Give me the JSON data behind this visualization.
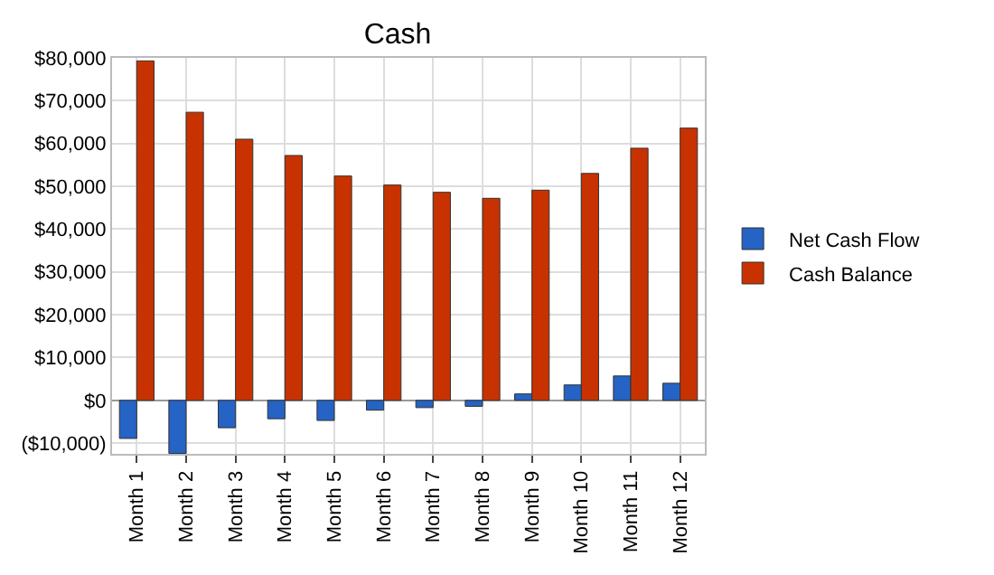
{
  "chart_data": {
    "type": "bar",
    "title": "Cash",
    "categories": [
      "Month 1",
      "Month 2",
      "Month 3",
      "Month 4",
      "Month 5",
      "Month 6",
      "Month 7",
      "Month 8",
      "Month 9",
      "Month 10",
      "Month 11",
      "Month 12"
    ],
    "series": [
      {
        "name": "Net Cash Flow",
        "color": "#2563c4",
        "values": [
          -8900,
          -12400,
          -6400,
          -4300,
          -4700,
          -2300,
          -1700,
          -1400,
          1500,
          3600,
          5700,
          4000
        ]
      },
      {
        "name": "Cash Balance",
        "color": "#c83200",
        "values": [
          79300,
          67300,
          61000,
          57200,
          52400,
          50300,
          48600,
          47200,
          49100,
          53000,
          58900,
          63600
        ]
      }
    ],
    "ylim": [
      -12500,
      80000
    ],
    "yticks": [
      {
        "value": -10000,
        "label": "($10,000)"
      },
      {
        "value": 0,
        "label": "$0"
      },
      {
        "value": 10000,
        "label": "$10,000"
      },
      {
        "value": 20000,
        "label": "$20,000"
      },
      {
        "value": 30000,
        "label": "$30,000"
      },
      {
        "value": 40000,
        "label": "$40,000"
      },
      {
        "value": 50000,
        "label": "$50,000"
      },
      {
        "value": 60000,
        "label": "$60,000"
      },
      {
        "value": 70000,
        "label": "$70,000"
      },
      {
        "value": 80000,
        "label": "$80,000"
      }
    ],
    "grid": true,
    "legend": "right"
  }
}
